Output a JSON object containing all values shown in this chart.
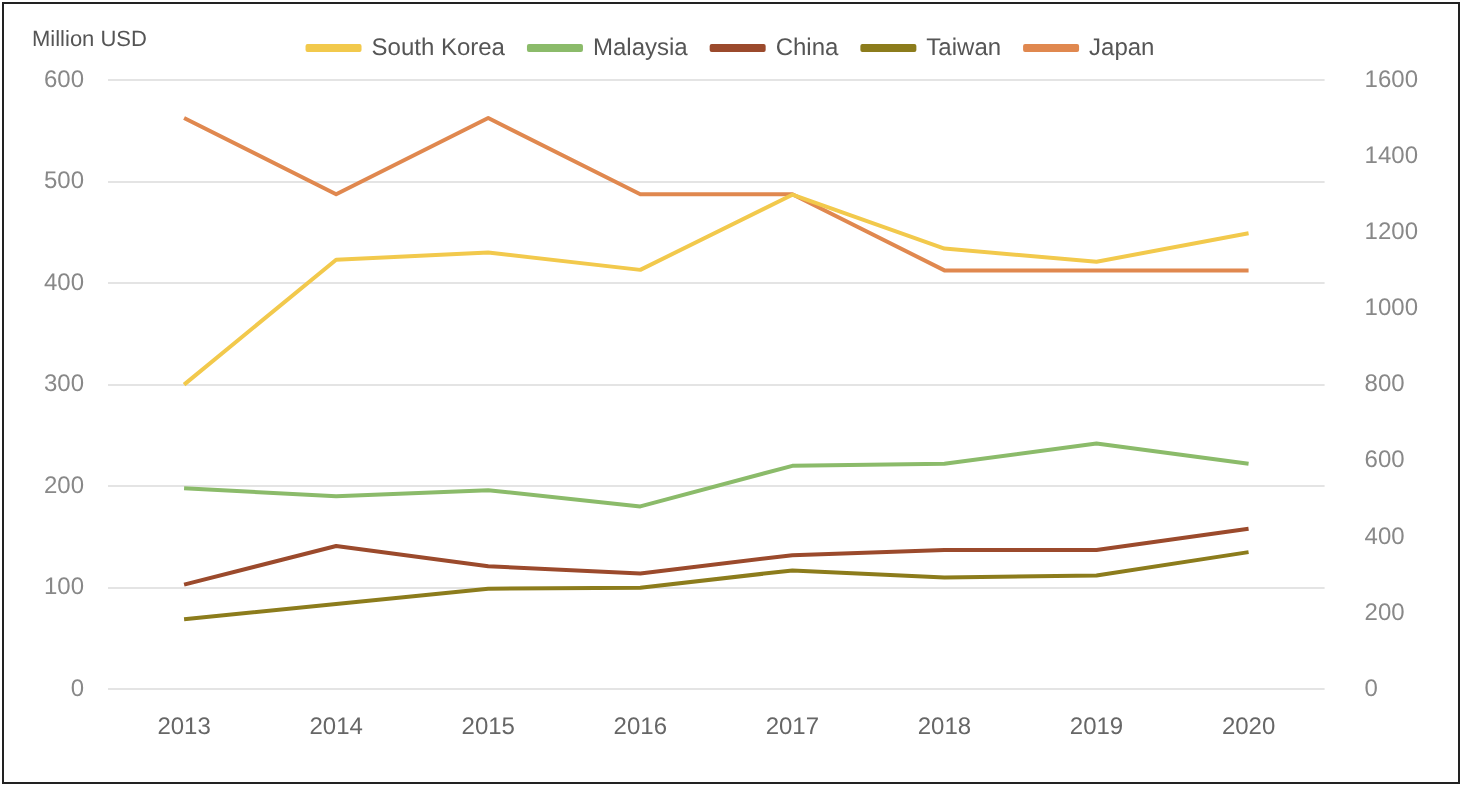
{
  "chart_data": {
    "type": "line",
    "ylabel": "Million USD",
    "categories": [
      "2013",
      "2014",
      "2015",
      "2016",
      "2017",
      "2018",
      "2019",
      "2020"
    ],
    "series": [
      {
        "name": "South Korea",
        "color": "#f2c94c",
        "values": [
          300,
          423,
          430,
          413,
          487,
          434,
          421,
          449
        ]
      },
      {
        "name": "Malaysia",
        "color": "#8bbb6a",
        "values": [
          198,
          190,
          196,
          180,
          220,
          222,
          242,
          222
        ]
      },
      {
        "name": "China",
        "color": "#9b4a2c",
        "values": [
          103,
          141,
          121,
          114,
          132,
          137,
          137,
          158
        ]
      },
      {
        "name": "Taiwan",
        "color": "#8c7c1c",
        "values": [
          69,
          84,
          99,
          100,
          117,
          110,
          112,
          135
        ]
      },
      {
        "name": "Japan",
        "color": "#e0884f",
        "axis": "y2",
        "values": [
          1500,
          1300,
          1500,
          1300,
          1300,
          1100,
          1100,
          1100
        ]
      }
    ],
    "ylim": [
      0,
      600
    ],
    "yticks": [
      0,
      100,
      200,
      300,
      400,
      500,
      600
    ],
    "y2lim": [
      0,
      1600
    ],
    "y2ticks": [
      0,
      200,
      400,
      600,
      800,
      1000,
      1200,
      1400,
      1600
    ],
    "grid": "y",
    "legend": "top",
    "marker": "none",
    "line_style": "solid"
  }
}
